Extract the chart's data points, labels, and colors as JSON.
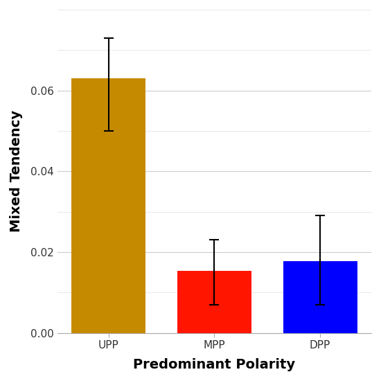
{
  "categories": [
    "UPP",
    "MPP",
    "DPP"
  ],
  "values": [
    0.063,
    0.0153,
    0.0178
  ],
  "bar_colors": [
    "#C68A00",
    "#FF1500",
    "#0000FF"
  ],
  "error_upper": [
    0.073,
    0.023,
    0.029
  ],
  "error_lower": [
    0.05,
    0.007,
    0.007
  ],
  "xlabel": "Predominant Polarity",
  "ylabel": "Mixed Tendency",
  "ylim": [
    0.0,
    0.08
  ],
  "yticks": [
    0.0,
    0.02,
    0.04,
    0.06
  ],
  "background_color": "#FFFFFF",
  "plot_bg_color": "#FFFFFF",
  "grid_color": "#CCCCCC",
  "minor_grid_color": "#DDDDDD",
  "bar_width": 0.7,
  "xlabel_fontsize": 14,
  "ylabel_fontsize": 14,
  "tick_fontsize": 11,
  "cap_size": 5,
  "elinewidth": 1.5,
  "capthick": 1.5
}
